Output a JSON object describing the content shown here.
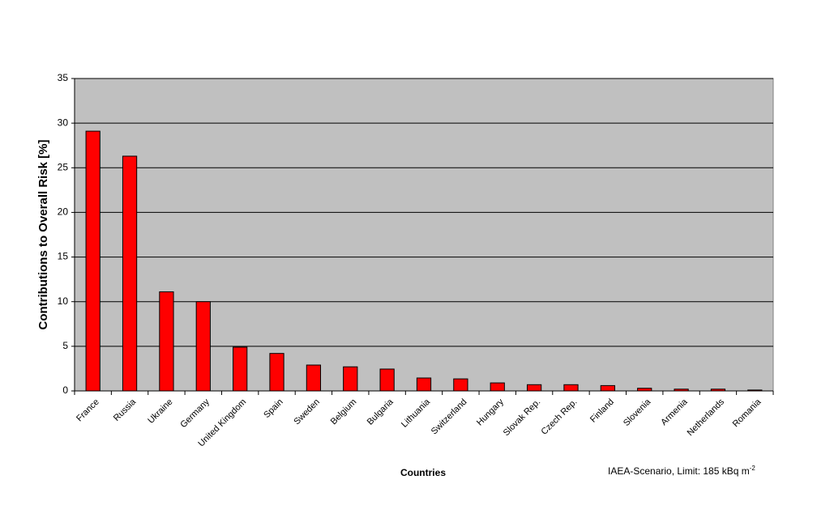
{
  "chart_data": {
    "type": "bar",
    "y_label": "Contributions to Overall Risk [%]",
    "x_label": "Countries",
    "annotation": "IAEA-Scenario, Limit: 185 kBq m",
    "annotation_superscript": "-2",
    "categories": [
      "France",
      "Russia",
      "Ukraine",
      "Germany",
      "United Kingdom",
      "Spain",
      "Sweden",
      "Belgium",
      "Bulgaria",
      "Lithuania",
      "Switzerland",
      "Hungary",
      "Slovak Rep.",
      "Czech Rep.",
      "Finland",
      "Slovenia",
      "Armenia",
      "Netherlands",
      "Romania"
    ],
    "values": [
      29.1,
      26.3,
      11.1,
      10.0,
      4.9,
      4.2,
      2.9,
      2.7,
      2.45,
      1.45,
      1.35,
      0.9,
      0.7,
      0.7,
      0.6,
      0.3,
      0.2,
      0.2,
      0.1
    ],
    "color": "#ff0000",
    "ylim": [
      0,
      35
    ],
    "yticks": [
      0,
      5,
      10,
      15,
      20,
      25,
      30,
      35
    ],
    "grid": true
  }
}
